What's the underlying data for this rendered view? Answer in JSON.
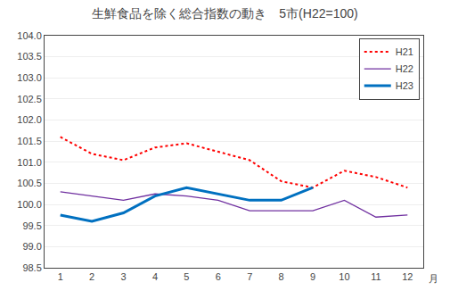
{
  "chart_data": {
    "type": "line",
    "title": "生鮮食品を除く総合指数の動き　5市(H22=100)",
    "xlabel": "月",
    "x": [
      1,
      2,
      3,
      4,
      5,
      6,
      7,
      8,
      9,
      10,
      11,
      12
    ],
    "series": [
      {
        "name": "H21",
        "color": "#ff0000",
        "line_style": "dotted",
        "values": [
          101.6,
          101.2,
          101.05,
          101.35,
          101.45,
          101.25,
          101.05,
          100.55,
          100.4,
          100.8,
          100.65,
          100.4
        ]
      },
      {
        "name": "H22",
        "color": "#7030a0",
        "line_style": "solid",
        "values": [
          100.3,
          100.2,
          100.1,
          100.25,
          100.2,
          100.1,
          99.85,
          99.85,
          99.85,
          100.1,
          99.7,
          99.75
        ]
      },
      {
        "name": "H23",
        "color": "#0070c0",
        "line_style": "solid",
        "values": [
          99.75,
          99.6,
          99.8,
          100.2,
          100.4,
          100.25,
          100.1,
          100.1,
          100.4,
          null,
          null,
          null
        ]
      }
    ],
    "xlim": [
      0.5,
      12.5
    ],
    "xticks": [
      1,
      2,
      3,
      4,
      5,
      6,
      7,
      8,
      9,
      10,
      11,
      12
    ],
    "ylim": [
      98.5,
      104.0
    ],
    "yticks": [
      98.5,
      {
        "value": 99.0,
        "label": "99.0"
      },
      99.5,
      {
        "value": 100.0,
        "label": "100.0"
      },
      100.5,
      {
        "value": 101.0,
        "label": "101.0"
      },
      101.5,
      {
        "value": 102.0,
        "label": "102.0"
      },
      102.5,
      {
        "value": 103.0,
        "label": "103.0"
      },
      103.5,
      {
        "value": 104.0,
        "label": "104.0"
      }
    ],
    "grid": "y",
    "legend": "upper right"
  }
}
